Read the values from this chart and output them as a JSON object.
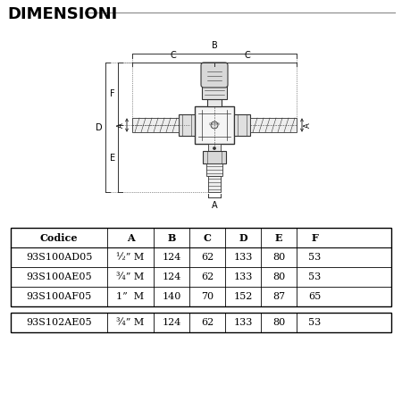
{
  "title": "DIMENSIONI",
  "bg_color": "#ffffff",
  "table_header": [
    "Codice",
    "A",
    "B",
    "C",
    "D",
    "E",
    "F"
  ],
  "table_rows_group1": [
    [
      "93S100AD05",
      "½” M",
      "124",
      "62",
      "133",
      "80",
      "53"
    ],
    [
      "93S100AE05",
      "¾” M",
      "124",
      "62",
      "133",
      "80",
      "53"
    ],
    [
      "93S100AF05",
      "1”  M",
      "140",
      "70",
      "152",
      "87",
      "65"
    ]
  ],
  "table_rows_group2": [
    [
      "93S102AE05",
      "¾” M",
      "124",
      "62",
      "133",
      "80",
      "53"
    ]
  ],
  "line_color": "#333333",
  "text_color": "#000000"
}
